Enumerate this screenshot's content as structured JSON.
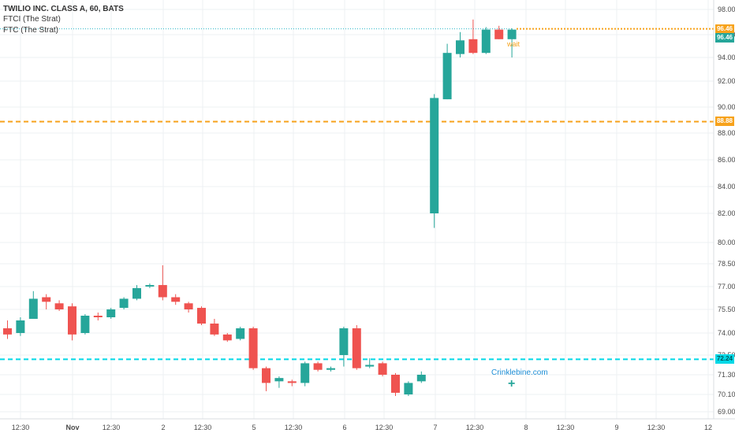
{
  "header": {
    "title": "TWILIO INC. CLASS A, 60, BATS",
    "indicator1": "FTCI (The Strat)",
    "indicator2": "FTC (The Strat)"
  },
  "annotations": {
    "watermark": "Crinklebine.com",
    "crosshair": "+",
    "wait": "wait"
  },
  "colors": {
    "up": "#26a69a",
    "down": "#ef5350",
    "orange": "#f7a21b",
    "cyan": "#00d8e6",
    "grid": "#eef1f3"
  },
  "chart_data": {
    "type": "candlestick",
    "symbol": "TWLO",
    "interval": "60",
    "y_axis_ticks": [
      "69.00",
      "70.10",
      "71.30",
      "72.50",
      "74.00",
      "75.50",
      "77.00",
      "78.50",
      "80.00",
      "82.00",
      "84.00",
      "86.00",
      "88.00",
      "90.00",
      "92.00",
      "94.00",
      "96.00",
      "98.00"
    ],
    "x_axis_ticks": [
      "12:30",
      "Nov",
      "12:30",
      "2",
      "12:30",
      "5",
      "12:30",
      "6",
      "12:30",
      "7",
      "12:30",
      "8",
      "12:30",
      "9",
      "12:30",
      "12"
    ],
    "horizontal_lines": [
      {
        "value": 96.46,
        "label": "96.46",
        "color": "#f7a21b",
        "style": "dotted"
      },
      {
        "value": 88.88,
        "label": "88.88",
        "color": "#f7a21b",
        "style": "dashed"
      },
      {
        "value": 72.24,
        "label": "72.24",
        "color": "#00d8e6",
        "style": "dashed"
      }
    ],
    "price_tag": {
      "value": 96.46,
      "label": "96.46"
    },
    "candles": [
      {
        "open": 74.3,
        "high": 74.8,
        "low": 73.6,
        "close": 73.9
      },
      {
        "open": 74.0,
        "high": 75.0,
        "low": 73.8,
        "close": 74.8
      },
      {
        "open": 74.9,
        "high": 76.7,
        "low": 74.9,
        "close": 76.2
      },
      {
        "open": 76.3,
        "high": 76.5,
        "low": 75.5,
        "close": 76.0
      },
      {
        "open": 75.9,
        "high": 76.1,
        "low": 75.4,
        "close": 75.5
      },
      {
        "open": 75.7,
        "high": 75.9,
        "low": 73.5,
        "close": 73.9
      },
      {
        "open": 74.0,
        "high": 75.2,
        "low": 73.9,
        "close": 75.1
      },
      {
        "open": 75.1,
        "high": 75.3,
        "low": 74.8,
        "close": 75.0
      },
      {
        "open": 75.0,
        "high": 75.6,
        "low": 74.9,
        "close": 75.5
      },
      {
        "open": 75.6,
        "high": 76.3,
        "low": 75.5,
        "close": 76.2
      },
      {
        "open": 76.2,
        "high": 77.1,
        "low": 76.1,
        "close": 76.9
      },
      {
        "open": 77.0,
        "high": 77.2,
        "low": 76.9,
        "close": 77.1
      },
      {
        "open": 77.1,
        "high": 78.4,
        "low": 76.1,
        "close": 76.3
      },
      {
        "open": 76.3,
        "high": 76.5,
        "low": 75.8,
        "close": 76.0
      },
      {
        "open": 75.9,
        "high": 76.0,
        "low": 75.3,
        "close": 75.5
      },
      {
        "open": 75.6,
        "high": 75.7,
        "low": 74.5,
        "close": 74.6
      },
      {
        "open": 74.6,
        "high": 74.9,
        "low": 73.8,
        "close": 73.9
      },
      {
        "open": 73.9,
        "high": 74.0,
        "low": 73.4,
        "close": 73.5
      },
      {
        "open": 73.6,
        "high": 74.4,
        "low": 73.5,
        "close": 74.3
      },
      {
        "open": 74.3,
        "high": 74.4,
        "low": 71.6,
        "close": 71.7
      },
      {
        "open": 71.7,
        "high": 71.8,
        "low": 70.3,
        "close": 70.8
      },
      {
        "open": 70.9,
        "high": 71.2,
        "low": 70.5,
        "close": 71.1
      },
      {
        "open": 70.9,
        "high": 71.0,
        "low": 70.6,
        "close": 70.8
      },
      {
        "open": 70.8,
        "high": 72.1,
        "low": 70.6,
        "close": 72.0
      },
      {
        "open": 72.0,
        "high": 72.1,
        "low": 71.5,
        "close": 71.6
      },
      {
        "open": 71.6,
        "high": 71.8,
        "low": 71.5,
        "close": 71.7
      },
      {
        "open": 72.5,
        "high": 74.4,
        "low": 71.8,
        "close": 74.3
      },
      {
        "open": 74.3,
        "high": 74.5,
        "low": 71.6,
        "close": 71.7
      },
      {
        "open": 71.8,
        "high": 72.3,
        "low": 71.7,
        "close": 71.9
      },
      {
        "open": 72.0,
        "high": 72.1,
        "low": 71.2,
        "close": 71.3
      },
      {
        "open": 71.3,
        "high": 71.4,
        "low": 70.0,
        "close": 70.2
      },
      {
        "open": 70.1,
        "high": 70.9,
        "low": 70.0,
        "close": 70.8
      },
      {
        "open": 70.9,
        "high": 71.5,
        "low": 70.8,
        "close": 71.3
      },
      {
        "open": 82.0,
        "high": 91.0,
        "low": 81.0,
        "close": 90.7
      },
      {
        "open": 90.6,
        "high": 95.2,
        "low": 90.6,
        "close": 94.4
      },
      {
        "open": 94.3,
        "high": 96.2,
        "low": 94.0,
        "close": 95.5
      },
      {
        "open": 95.6,
        "high": 97.2,
        "low": 94.3,
        "close": 94.4
      },
      {
        "open": 94.4,
        "high": 96.6,
        "low": 94.3,
        "close": 96.4
      },
      {
        "open": 96.4,
        "high": 96.7,
        "low": 95.6,
        "close": 95.6
      },
      {
        "open": 95.6,
        "high": 96.5,
        "low": 94.0,
        "close": 96.4
      }
    ]
  }
}
